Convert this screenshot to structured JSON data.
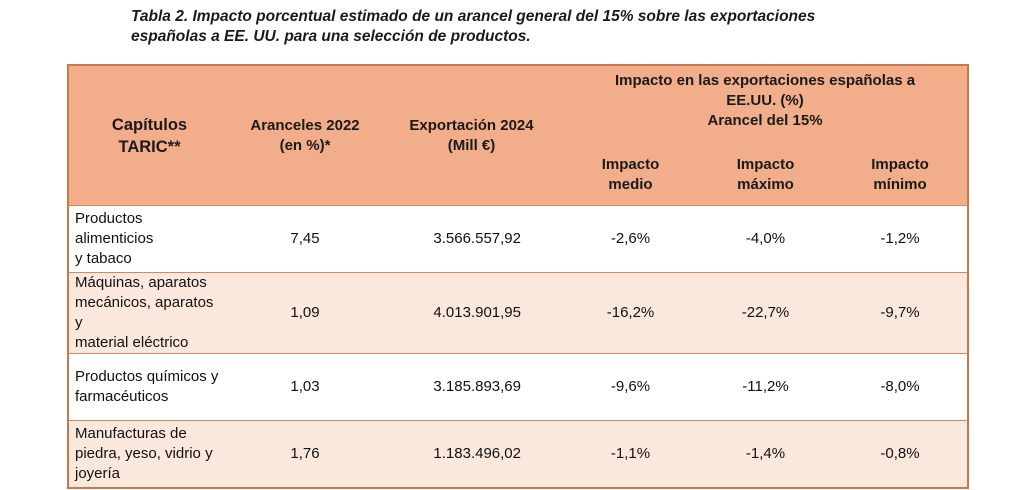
{
  "caption": {
    "line1": "Tabla 2. Impacto porcentual estimado de un arancel general del 15% sobre las exportaciones",
    "line2": "españolas a EE. UU. para una selección de productos."
  },
  "header": {
    "chapters": [
      "Capítulos",
      "TARIC**"
    ],
    "tariffs": [
      "Aranceles 2022",
      "(en %)*"
    ],
    "exports": [
      "Exportación 2024",
      "(Mill €)"
    ],
    "impact_group": [
      "Impacto en las exportaciones españolas a",
      "EE.UU. (%)",
      "Arancel del 15%"
    ],
    "impact_mean": [
      "Impacto",
      "medio"
    ],
    "impact_max": [
      "Impacto",
      "máximo"
    ],
    "impact_min": [
      "Impacto",
      "mínimo"
    ]
  },
  "rows": [
    {
      "name_lines": [
        "Productos alimenticios",
        "y tabaco"
      ],
      "tariff": "7,45",
      "exports": "3.566.557,92",
      "mean": "-2,6%",
      "max": "-4,0%",
      "min": "-1,2%"
    },
    {
      "name_lines": [
        "Máquinas, aparatos",
        "mecánicos, aparatos y",
        "material eléctrico"
      ],
      "tariff": "1,09",
      "exports": "4.013.901,95",
      "mean": "-16,2%",
      "max": "-22,7%",
      "min": "-9,7%"
    },
    {
      "name_lines": [
        "Productos químicos y",
        "farmacéuticos"
      ],
      "tariff": "1,03",
      "exports": "3.185.893,69",
      "mean": "-9,6%",
      "max": "-11,2%",
      "min": "-8,0%"
    },
    {
      "name_lines": [
        "Manufacturas de",
        "piedra, yeso, vidrio y",
        "joyería"
      ],
      "tariff": "1,76",
      "exports": "1.183.496,02",
      "mean": "-1,1%",
      "max": "-1,4%",
      "min": "-0,8%"
    }
  ],
  "colors": {
    "header_bg": "#f2ad8a",
    "border": "#c8784a",
    "alt_row_bg": "#fbe8dd"
  }
}
